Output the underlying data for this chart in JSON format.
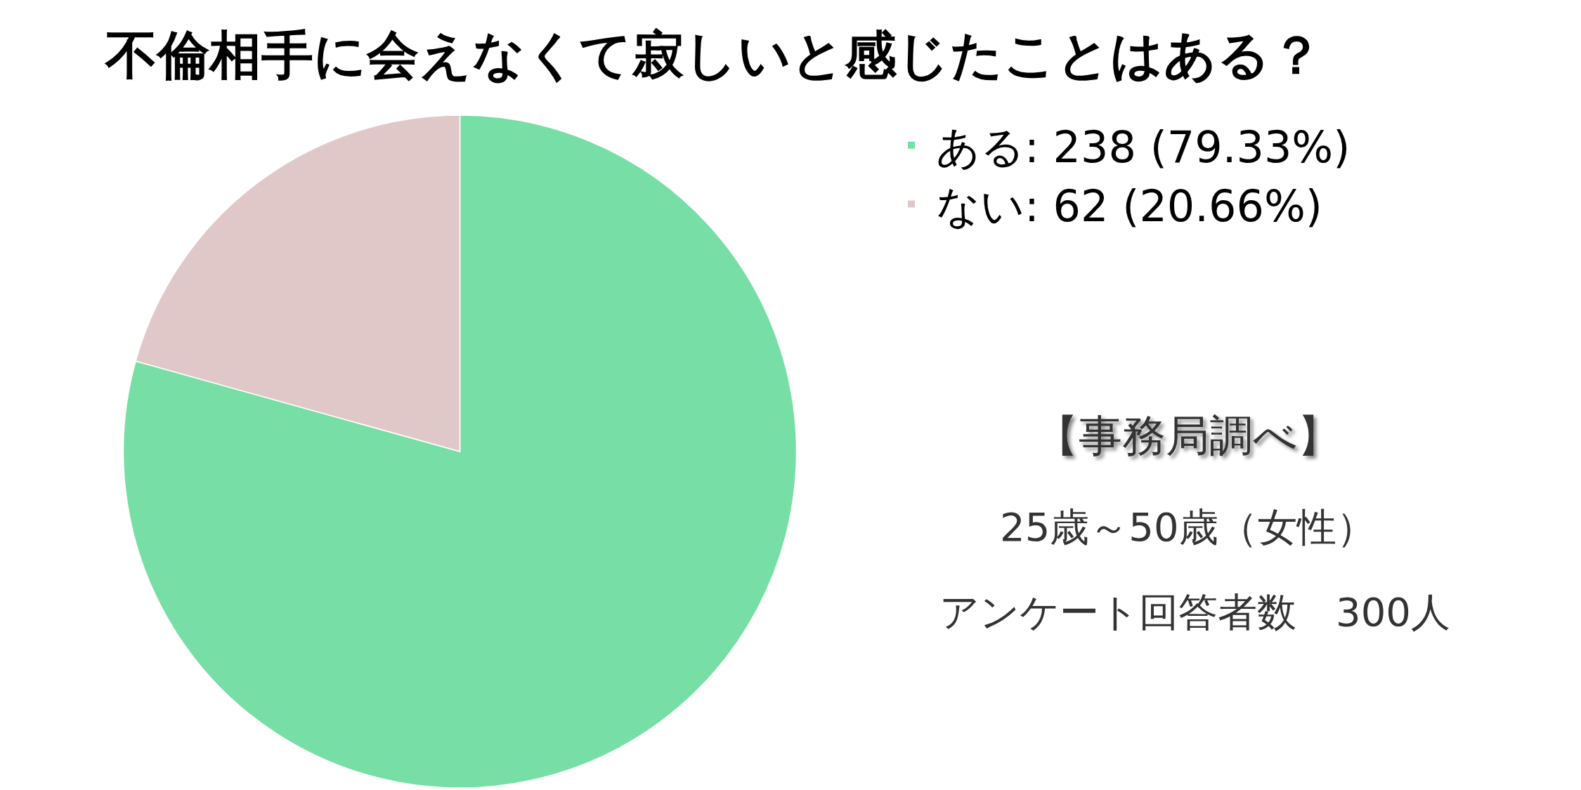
{
  "chart_data": {
    "type": "pie",
    "title": "不倫相手に会えなくて寂しいと感じたことはある？",
    "categories": [
      "ある: 238 (79.33%)",
      "ない: 62 (20.66%)"
    ],
    "values": [
      238,
      62
    ],
    "colors": [
      "#77dfa5",
      "#e0c8c8"
    ],
    "legend": "top right",
    "annotations": [
      "【事務局調べ】",
      "25歳～50歳（女性）",
      "アンケート回答者数　300人"
    ]
  }
}
